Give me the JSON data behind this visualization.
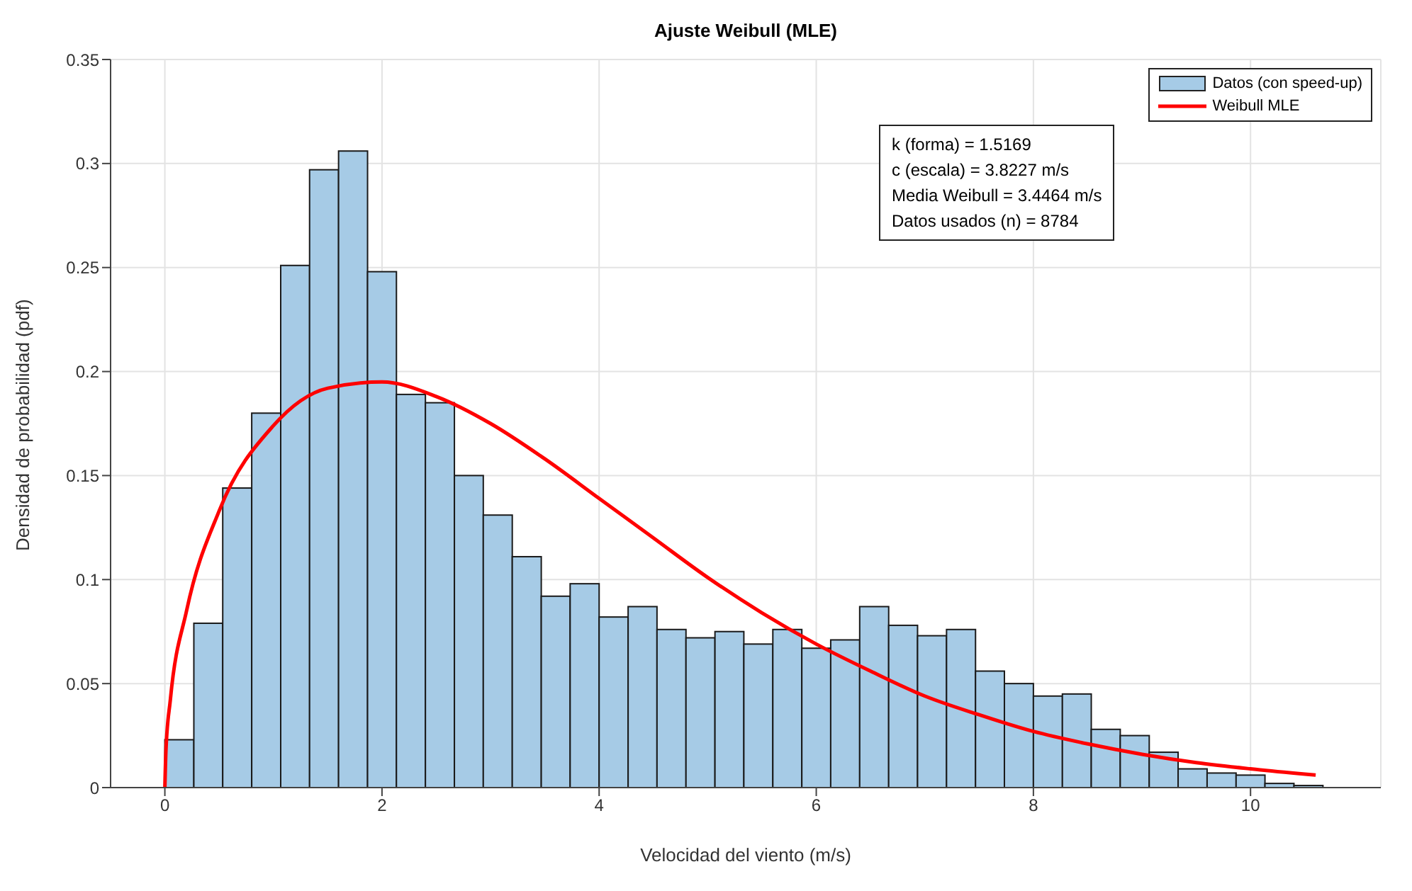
{
  "chart_data": {
    "type": "histogram",
    "title": "Ajuste Weibull (MLE)",
    "xlabel": "Velocidad del viento (m/s)",
    "ylabel": "Densidad de probabilidad (pdf)",
    "bins": [
      0,
      0.267,
      0.533,
      0.8,
      1.067,
      1.333,
      1.6,
      1.867,
      2.133,
      2.4,
      2.667,
      2.933,
      3.2,
      3.467,
      3.733,
      4,
      4.267,
      4.533,
      4.8,
      5.067,
      5.333,
      5.6,
      5.867,
      6.133,
      6.4,
      6.667,
      6.933,
      7.2,
      7.467,
      7.733,
      8,
      8.267,
      8.533,
      8.8,
      9.067,
      9.333,
      9.6,
      9.867,
      10.133,
      10.4,
      10.667
    ],
    "series": [
      {
        "name": "Datos (con speed-up)",
        "color": "#a6cbe6",
        "values": [
          0.023,
          0.079,
          0.144,
          0.18,
          0.251,
          0.297,
          0.306,
          0.248,
          0.189,
          0.185,
          0.15,
          0.131,
          0.111,
          0.092,
          0.098,
          0.082,
          0.087,
          0.076,
          0.072,
          0.075,
          0.069,
          0.076,
          0.067,
          0.071,
          0.087,
          0.078,
          0.073,
          0.076,
          0.056,
          0.05,
          0.044,
          0.045,
          0.028,
          0.025,
          0.017,
          0.009,
          0.007,
          0.006,
          0.002,
          0.001
        ]
      },
      {
        "name": "Weibull MLE",
        "type": "line",
        "color": "#ff0000",
        "x": [
          0,
          0.01,
          0.05,
          0.2,
          0.5,
          1,
          1.5,
          2,
          2.5,
          3,
          3.5,
          4,
          4.5,
          5,
          5.5,
          6,
          6.5,
          7,
          7.5,
          8,
          8.5,
          9,
          9.5,
          10,
          10.6
        ],
        "values": [
          0,
          0.018,
          0.042,
          0.085,
          0.133,
          0.174,
          0.192,
          0.195,
          0.188,
          0.175,
          0.158,
          0.139,
          0.12,
          0.101,
          0.084,
          0.069,
          0.056,
          0.044,
          0.035,
          0.027,
          0.021,
          0.016,
          0.012,
          0.009,
          0.006
        ]
      }
    ],
    "xlim": [
      -0.5,
      11.2
    ],
    "xticks": [
      0,
      2,
      4,
      6,
      8,
      10
    ],
    "ylim": [
      0,
      0.35
    ],
    "yticks": [
      0,
      0.05,
      0.1,
      0.15,
      0.2,
      0.25,
      0.3,
      0.35
    ],
    "grid": true,
    "legend": "top right",
    "marker": "none",
    "line_style": "solid",
    "annotations": [
      "k (forma) = 1.5169",
      "c (escala) = 3.8227 m/s",
      "Media Weibull = 3.4464 m/s",
      "Datos usados (n) = 8784"
    ]
  }
}
